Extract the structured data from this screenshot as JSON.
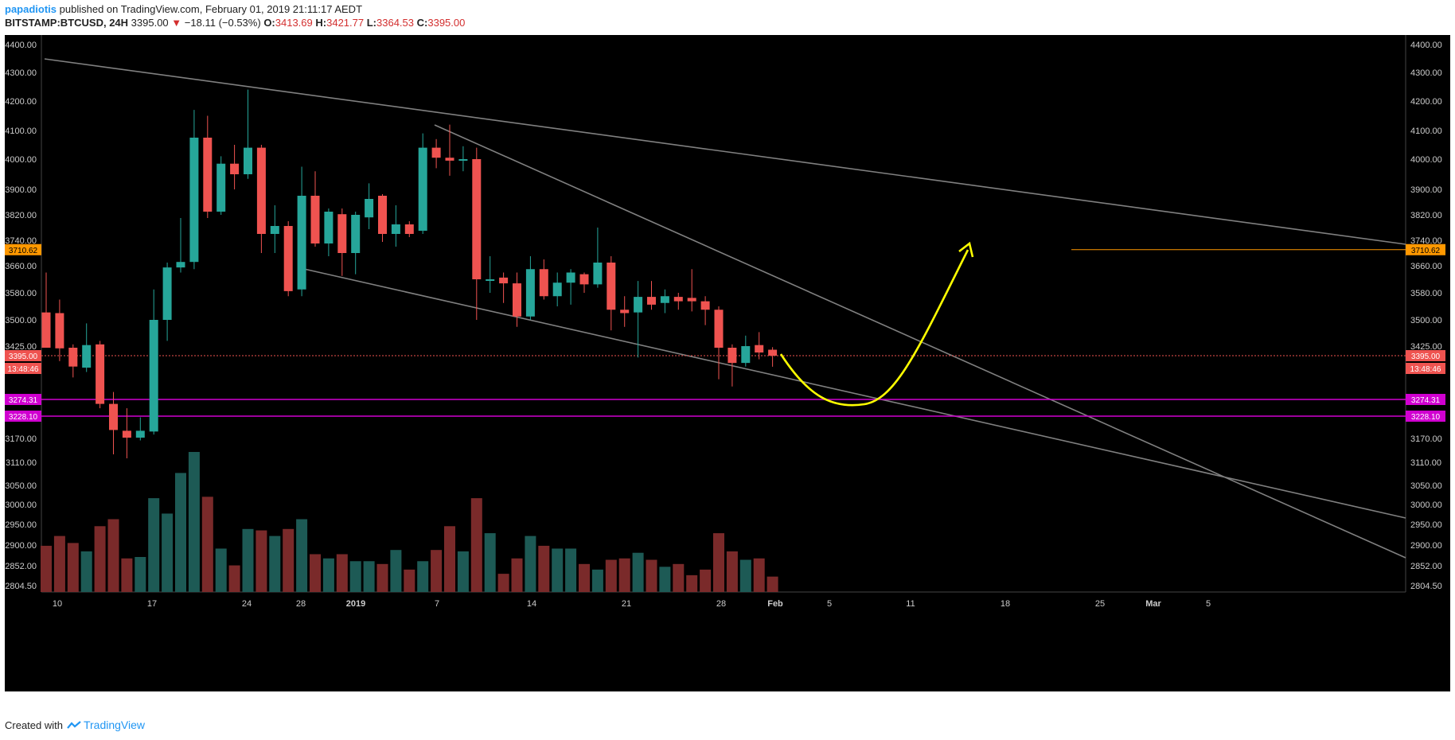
{
  "header": {
    "author": "papadiotis",
    "published": "published on TradingView.com, February 01, 2019 21:11:17 AEDT",
    "symbol": "BITSTAMP:BTCUSD, 24H",
    "last": "3395.00",
    "change": "−18.11 (−0.53%)",
    "o_label": "O:",
    "o": "3413.69",
    "h_label": "H:",
    "h": "3421.77",
    "l_label": "L:",
    "l": "3364.53",
    "c_label": "C:",
    "c": "3395.00"
  },
  "footer": {
    "created_with": "Created with",
    "brand": "TradingView"
  },
  "colors": {
    "up": "#26a69a",
    "down": "#ef5350",
    "vol_up": "#1d5a55",
    "vol_down": "#7a2a2a",
    "trendline": "#808080",
    "support": "#d000d0",
    "target": "#ff9800",
    "price_line": "#ef5350",
    "projection": "#ffff00"
  },
  "chart_data": {
    "type": "candlestick",
    "price_axis_ticks": [
      "4400.00",
      "4300.00",
      "4200.00",
      "4100.00",
      "4000.00",
      "3900.00",
      "3820.00",
      "3740.00",
      "3660.00",
      "3580.00",
      "3500.00",
      "3425.00",
      "3170.00",
      "3110.00",
      "3050.00",
      "3000.00",
      "2950.00",
      "2900.00",
      "2852.00",
      "2804.50"
    ],
    "price_labels": [
      {
        "text": "3710.62",
        "kind": "target"
      },
      {
        "text": "3395.00",
        "kind": "last"
      },
      {
        "text": "13:48:46",
        "kind": "countdown"
      },
      {
        "text": "3274.31",
        "kind": "support"
      },
      {
        "text": "3228.10",
        "kind": "support"
      }
    ],
    "time_axis_ticks": [
      "10",
      "17",
      "24",
      "28",
      "2019",
      "7",
      "14",
      "21",
      "28",
      "Feb",
      "5",
      "11",
      "18",
      "25",
      "Mar",
      "5"
    ],
    "candles": [
      {
        "o": 3522,
        "h": 3640,
        "l": 3425,
        "c": 3420
      },
      {
        "o": 3520,
        "h": 3560,
        "l": 3380,
        "c": 3418
      },
      {
        "o": 3420,
        "h": 3430,
        "l": 3335,
        "c": 3365
      },
      {
        "o": 3362,
        "h": 3490,
        "l": 3350,
        "c": 3428
      },
      {
        "o": 3430,
        "h": 3440,
        "l": 3250,
        "c": 3262
      },
      {
        "o": 3262,
        "h": 3295,
        "l": 3130,
        "c": 3192
      },
      {
        "o": 3190,
        "h": 3250,
        "l": 3120,
        "c": 3172
      },
      {
        "o": 3172,
        "h": 3225,
        "l": 3165,
        "c": 3190
      },
      {
        "o": 3188,
        "h": 3590,
        "l": 3180,
        "c": 3500
      },
      {
        "o": 3500,
        "h": 3670,
        "l": 3440,
        "c": 3655
      },
      {
        "o": 3655,
        "h": 3810,
        "l": 3640,
        "c": 3672
      },
      {
        "o": 3672,
        "h": 4170,
        "l": 3650,
        "c": 4075
      },
      {
        "o": 4075,
        "h": 4150,
        "l": 3810,
        "c": 3830
      },
      {
        "o": 3830,
        "h": 4010,
        "l": 3820,
        "c": 3985
      },
      {
        "o": 3985,
        "h": 4050,
        "l": 3900,
        "c": 3950
      },
      {
        "o": 3950,
        "h": 4240,
        "l": 3935,
        "c": 4040
      },
      {
        "o": 4040,
        "h": 4050,
        "l": 3700,
        "c": 3760
      },
      {
        "o": 3760,
        "h": 3850,
        "l": 3700,
        "c": 3785
      },
      {
        "o": 3785,
        "h": 3800,
        "l": 3570,
        "c": 3585
      },
      {
        "o": 3590,
        "h": 3975,
        "l": 3570,
        "c": 3880
      },
      {
        "o": 3880,
        "h": 3960,
        "l": 3720,
        "c": 3730
      },
      {
        "o": 3730,
        "h": 3840,
        "l": 3690,
        "c": 3830
      },
      {
        "o": 3822,
        "h": 3840,
        "l": 3630,
        "c": 3700
      },
      {
        "o": 3700,
        "h": 3830,
        "l": 3635,
        "c": 3820
      },
      {
        "o": 3812,
        "h": 3920,
        "l": 3775,
        "c": 3870
      },
      {
        "o": 3880,
        "h": 3885,
        "l": 3735,
        "c": 3760
      },
      {
        "o": 3760,
        "h": 3850,
        "l": 3720,
        "c": 3790
      },
      {
        "o": 3790,
        "h": 3800,
        "l": 3750,
        "c": 3760
      },
      {
        "o": 3770,
        "h": 4090,
        "l": 3760,
        "c": 4040
      },
      {
        "o": 4040,
        "h": 4070,
        "l": 3970,
        "c": 4005
      },
      {
        "o": 4005,
        "h": 4120,
        "l": 3945,
        "c": 3995
      },
      {
        "o": 3995,
        "h": 4045,
        "l": 3960,
        "c": 4000
      },
      {
        "o": 4000,
        "h": 4040,
        "l": 3500,
        "c": 3620
      },
      {
        "o": 3618,
        "h": 3690,
        "l": 3580,
        "c": 3620
      },
      {
        "o": 3625,
        "h": 3640,
        "l": 3550,
        "c": 3608
      },
      {
        "o": 3608,
        "h": 3640,
        "l": 3480,
        "c": 3510
      },
      {
        "o": 3510,
        "h": 3690,
        "l": 3500,
        "c": 3650
      },
      {
        "o": 3650,
        "h": 3680,
        "l": 3560,
        "c": 3570
      },
      {
        "o": 3570,
        "h": 3640,
        "l": 3540,
        "c": 3610
      },
      {
        "o": 3610,
        "h": 3650,
        "l": 3545,
        "c": 3640
      },
      {
        "o": 3635,
        "h": 3640,
        "l": 3580,
        "c": 3605
      },
      {
        "o": 3605,
        "h": 3780,
        "l": 3595,
        "c": 3670
      },
      {
        "o": 3670,
        "h": 3690,
        "l": 3470,
        "c": 3530
      },
      {
        "o": 3530,
        "h": 3570,
        "l": 3480,
        "c": 3520
      },
      {
        "o": 3522,
        "h": 3615,
        "l": 3390,
        "c": 3568
      },
      {
        "o": 3568,
        "h": 3615,
        "l": 3530,
        "c": 3545
      },
      {
        "o": 3550,
        "h": 3590,
        "l": 3520,
        "c": 3570
      },
      {
        "o": 3568,
        "h": 3580,
        "l": 3530,
        "c": 3555
      },
      {
        "o": 3565,
        "h": 3650,
        "l": 3525,
        "c": 3555
      },
      {
        "o": 3555,
        "h": 3570,
        "l": 3485,
        "c": 3530
      },
      {
        "o": 3530,
        "h": 3540,
        "l": 3330,
        "c": 3420
      },
      {
        "o": 3420,
        "h": 3430,
        "l": 3310,
        "c": 3375
      },
      {
        "o": 3375,
        "h": 3455,
        "l": 3365,
        "c": 3425
      },
      {
        "o": 3428,
        "h": 3465,
        "l": 3385,
        "c": 3405
      },
      {
        "o": 3413.69,
        "h": 3421.77,
        "l": 3364.53,
        "c": 3395
      }
    ],
    "volume": [
      0.33,
      0.4,
      0.35,
      0.29,
      0.47,
      0.52,
      0.24,
      0.25,
      0.67,
      0.56,
      0.85,
      1.0,
      0.68,
      0.31,
      0.19,
      0.45,
      0.44,
      0.4,
      0.45,
      0.52,
      0.27,
      0.24,
      0.27,
      0.22,
      0.22,
      0.2,
      0.3,
      0.16,
      0.22,
      0.3,
      0.47,
      0.29,
      0.67,
      0.42,
      0.13,
      0.24,
      0.4,
      0.33,
      0.31,
      0.31,
      0.2,
      0.16,
      0.23,
      0.24,
      0.28,
      0.23,
      0.18,
      0.2,
      0.12,
      0.16,
      0.42,
      0.29,
      0.23,
      0.24,
      0.11
    ],
    "support_levels": [
      3274.31,
      3228.1
    ],
    "target_level": 3710.62,
    "last_price": 3395.0
  }
}
